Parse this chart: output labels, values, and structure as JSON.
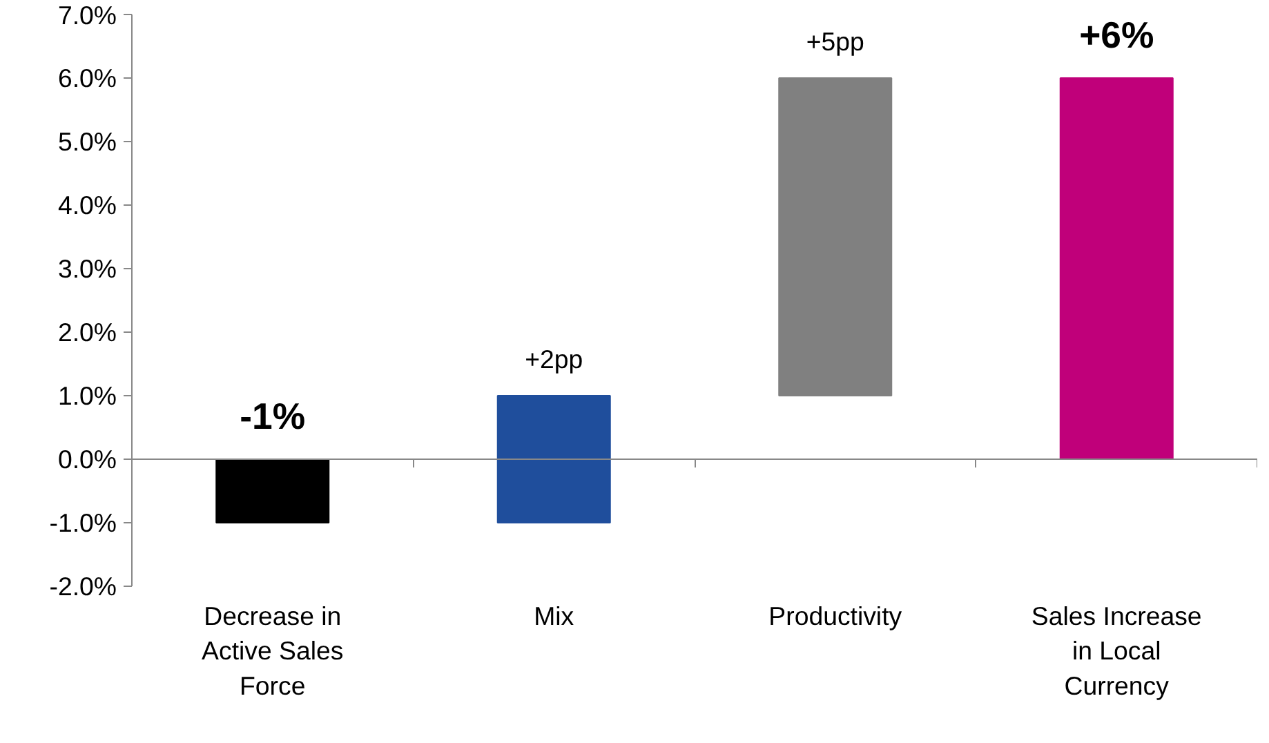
{
  "chart_data": {
    "type": "bar",
    "categories": [
      "Decrease in Active Sales Force",
      "Mix",
      "Productivity",
      "Sales Increase in Local Currency"
    ],
    "values": [
      -1,
      2,
      5,
      6
    ],
    "base": [
      0,
      -1,
      1,
      0
    ],
    "colors": [
      "#000000",
      "#1f4e9c",
      "#808080",
      "#c0007a"
    ],
    "value_labels": [
      "-1%",
      "+2pp",
      "+5pp",
      "+6%"
    ],
    "ylim": [
      -2,
      7
    ],
    "yticks": [
      {
        "value": -2,
        "label": "-2.0%"
      },
      {
        "value": -1,
        "label": "-1.0%"
      },
      {
        "value": 0,
        "label": "0.0%"
      },
      {
        "value": 1,
        "label": "1.0%"
      },
      {
        "value": 2,
        "label": "2.0%"
      },
      {
        "value": 3,
        "label": "3.0%"
      },
      {
        "value": 4,
        "label": "4.0%"
      },
      {
        "value": 5,
        "label": "5.0%"
      },
      {
        "value": 6,
        "label": "6.0%"
      },
      {
        "value": 7,
        "label": "7.0%"
      }
    ]
  }
}
